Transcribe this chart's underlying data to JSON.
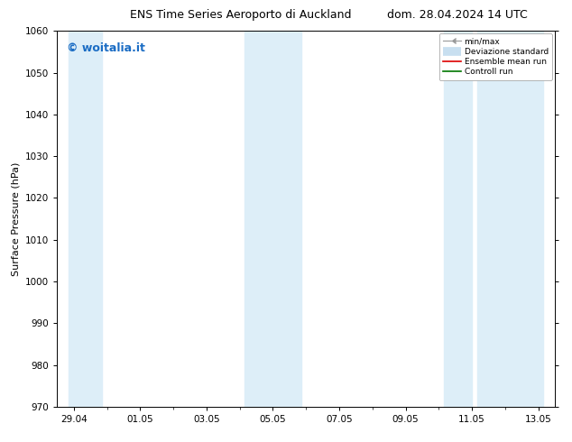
{
  "title_left": "ENS Time Series Aeroporto di Auckland",
  "title_right": "dom. 28.04.2024 14 UTC",
  "ylabel": "Surface Pressure (hPa)",
  "ylim": [
    970,
    1060
  ],
  "yticks": [
    970,
    980,
    990,
    1000,
    1010,
    1020,
    1030,
    1040,
    1050,
    1060
  ],
  "xtick_labels": [
    "29.04",
    "01.05",
    "03.05",
    "05.05",
    "07.05",
    "09.05",
    "11.05",
    "13.05"
  ],
  "xtick_positions": [
    0,
    2,
    4,
    6,
    8,
    10,
    12,
    14
  ],
  "shaded_regions": [
    {
      "x_start": -0.15,
      "x_end": 0.85
    },
    {
      "x_start": 5.15,
      "x_end": 6.85
    },
    {
      "x_start": 11.15,
      "x_end": 12.0
    },
    {
      "x_start": 12.15,
      "x_end": 14.15
    }
  ],
  "shaded_color": "#ddeef8",
  "watermark_text": "© woitalia.it",
  "watermark_color": "#1a6cc4",
  "watermark_fontsize": 9,
  "legend_minmax_color": "#999999",
  "legend_std_color": "#c8dff0",
  "legend_ens_color": "#dd0000",
  "legend_ctrl_color": "#007700",
  "background_color": "#ffffff",
  "grid_color": "#cccccc",
  "title_fontsize": 9,
  "axis_label_fontsize": 8,
  "tick_fontsize": 7.5
}
